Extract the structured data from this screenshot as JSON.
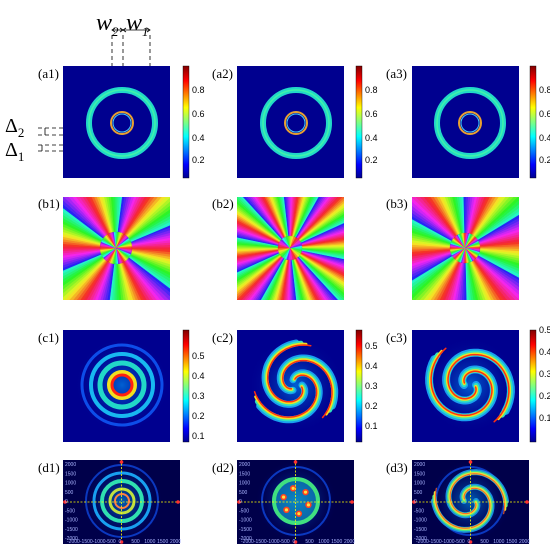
{
  "annotations": {
    "w2": "w",
    "w2_sub": "2",
    "w1": "w",
    "w1_sub": "1",
    "delta2": "Δ",
    "delta2_sub": "2",
    "delta1": "Δ",
    "delta1_sub": "1"
  },
  "row_a": {
    "labels": [
      "(a1)",
      "(a2)",
      "(a3)"
    ],
    "colorbar_ticks": [
      "0.8",
      "0.6",
      "0.4",
      "0.2"
    ]
  },
  "row_b": {
    "labels": [
      "(b1)",
      "(b2)",
      "(b3)"
    ]
  },
  "row_c": {
    "labels": [
      "(c1)",
      "(c2)",
      "(c3)"
    ],
    "colorbar_ticks": [
      [
        "0.5",
        "0.4",
        "0.3",
        "0.2",
        "0.1"
      ],
      [
        "0.5",
        "0.4",
        "0.3",
        "0.2",
        "0.1"
      ],
      [
        "0.5",
        "0.4",
        "0.3",
        "0.2",
        "0.1"
      ]
    ]
  },
  "row_d": {
    "labels": [
      "(d1)",
      "(d2)",
      "(d3)"
    ],
    "y_ticks": [
      "2000",
      "1500",
      "1000",
      "500",
      "0",
      "-500",
      "-1000",
      "-1500",
      "-2000"
    ],
    "x_ticks": [
      "-2000",
      "-1500",
      "-1000",
      "-500",
      "0",
      "500",
      "1000",
      "1500",
      "2000"
    ]
  },
  "colors": {
    "background_field": "#00008f",
    "ring_cyan": "#20d8c8",
    "inner_ring": "#e8a030",
    "crosshair": "#ffff00"
  }
}
